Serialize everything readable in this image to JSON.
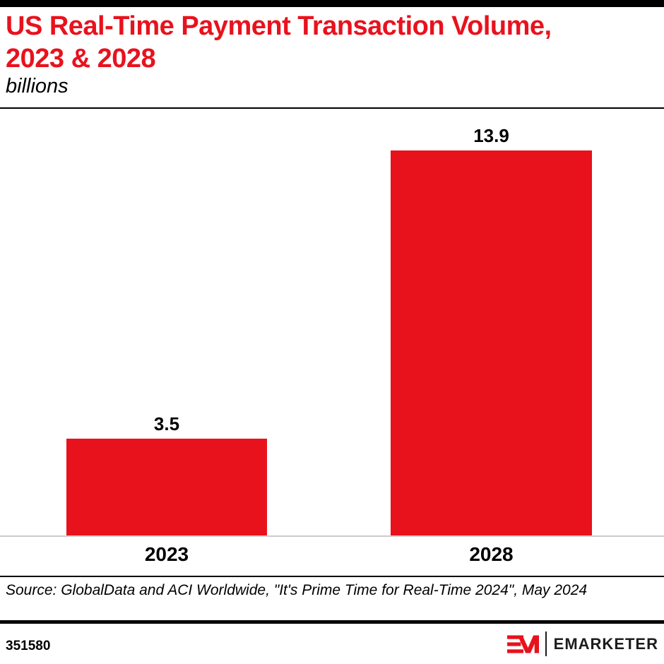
{
  "header": {
    "title_line1": "US Real-Time Payment Transaction Volume,",
    "title_line2": "2023 & 2028",
    "subtitle": "billions"
  },
  "chart_data": {
    "type": "bar",
    "title": "US Real-Time Payment Transaction Volume, 2023 & 2028",
    "units": "billions",
    "categories": [
      "2023",
      "2028"
    ],
    "values": [
      3.5,
      13.9
    ],
    "value_labels": [
      "3.5",
      "13.9"
    ],
    "ylim": [
      0,
      13.9
    ],
    "grid": false,
    "legend": "none",
    "bar_color": "#E8121D",
    "baseline_color": "#CCCCCC"
  },
  "source": {
    "text": "Source: GlobalData and ACI Worldwide, \"It's Prime Time for Real-Time 2024\", May 2024"
  },
  "footer": {
    "chart_id": "351580",
    "brand_wordmark": "EMARKETER"
  },
  "colors": {
    "accent_red": "#E8121D",
    "axis_gray": "#CCCCCC",
    "divider_black": "#000000"
  }
}
